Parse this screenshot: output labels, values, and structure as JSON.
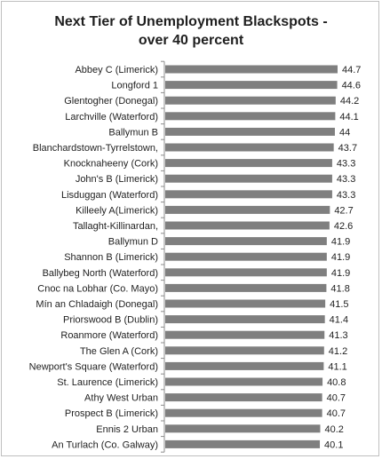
{
  "chart_data": {
    "type": "bar",
    "orientation": "horizontal",
    "title_lines": [
      "Next Tier of Unemployment Blackspots -",
      "over 40 percent"
    ],
    "categories": [
      "Abbey C (Limerick)",
      "Longford  1",
      "Glentogher (Donegal)",
      "Larchville (Waterford)",
      "Ballymun B",
      "Blanchardstown-Tyrrelstown,",
      "Knocknaheeny (Cork)",
      "John's B (Limerick)",
      "Lisduggan (Waterford)",
      "Killeely A(Limerick)",
      "Tallaght-Killinardan,",
      "Ballymun D",
      "Shannon B (Limerick)",
      "Ballybeg North (Waterford)",
      "Cnoc na Lobhar (Co. Mayo)",
      "Mín an Chladaigh (Donegal)",
      "Priorswood B (Dublin)",
      "Roanmore (Waterford)",
      "The Glen A (Cork)",
      "Newport's Square (Waterford)",
      "St. Laurence (Limerick)",
      "Athy West Urban",
      "Prospect B (Limerick)",
      "Ennis 2 Urban",
      "An Turlach (Co. Galway)"
    ],
    "values": [
      44.7,
      44.6,
      44.2,
      44.1,
      44,
      43.7,
      43.3,
      43.3,
      43.3,
      42.7,
      42.6,
      41.9,
      41.9,
      41.9,
      41.8,
      41.5,
      41.4,
      41.3,
      41.2,
      41.1,
      40.8,
      40.7,
      40.7,
      40.2,
      40.1
    ],
    "value_labels": [
      "44.7",
      "44.6",
      "44.2",
      "44.1",
      "44",
      "43.7",
      "43.3",
      "43.3",
      "43.3",
      "42.7",
      "42.6",
      "41.9",
      "41.9",
      "41.9",
      "41.8",
      "41.5",
      "41.4",
      "41.3",
      "41.2",
      "41.1",
      "40.8",
      "40.7",
      "40.7",
      "40.2",
      "40.1"
    ],
    "xlim": [
      0,
      44.7
    ],
    "bar_color": "#7f7f7f",
    "grid": false,
    "legend": "none"
  }
}
